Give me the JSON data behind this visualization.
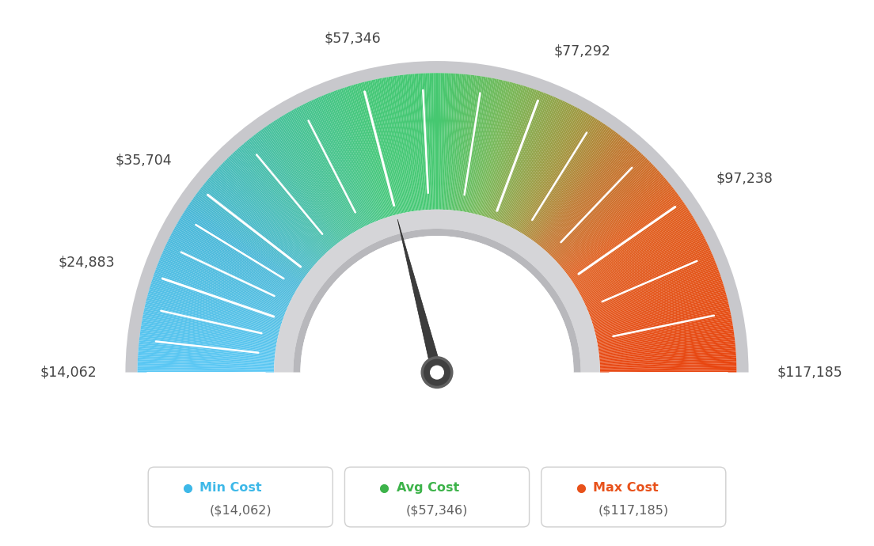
{
  "min_value": 14062,
  "max_value": 117185,
  "avg_value": 57346,
  "tick_labels": [
    {
      "value": 14062,
      "label": "$14,062",
      "ha": "right",
      "va": "center",
      "offset_r": 1.42
    },
    {
      "value": 24883,
      "label": "$24,883",
      "ha": "right",
      "va": "center",
      "offset_r": 1.42
    },
    {
      "value": 35704,
      "label": "$35,704",
      "ha": "right",
      "va": "bottom",
      "offset_r": 1.4
    },
    {
      "value": 57346,
      "label": "$57,346",
      "ha": "center",
      "va": "bottom",
      "offset_r": 1.41
    },
    {
      "value": 77292,
      "label": "$77,292",
      "ha": "left",
      "va": "bottom",
      "offset_r": 1.4
    },
    {
      "value": 97238,
      "label": "$97,238",
      "ha": "left",
      "va": "center",
      "offset_r": 1.42
    },
    {
      "value": 117185,
      "label": "$117,185",
      "ha": "left",
      "va": "center",
      "offset_r": 1.42
    }
  ],
  "legend": [
    {
      "label": "Min Cost",
      "value": "($14,062)",
      "color": "#3db8e8"
    },
    {
      "label": "Avg Cost",
      "value": "($57,346)",
      "color": "#3db34a"
    },
    {
      "label": "Max Cost",
      "value": "($117,185)",
      "color": "#e8511a"
    }
  ],
  "background_color": "#ffffff",
  "label_color": "#555555",
  "gauge_color_stops": [
    [
      0.0,
      "#5bc8f5"
    ],
    [
      0.18,
      "#4ab8d8"
    ],
    [
      0.3,
      "#48c0a0"
    ],
    [
      0.42,
      "#45c878"
    ],
    [
      0.5,
      "#45c870"
    ],
    [
      0.58,
      "#78b858"
    ],
    [
      0.66,
      "#a09840"
    ],
    [
      0.72,
      "#c07830"
    ],
    [
      0.8,
      "#e06020"
    ],
    [
      1.0,
      "#e84510"
    ]
  ]
}
